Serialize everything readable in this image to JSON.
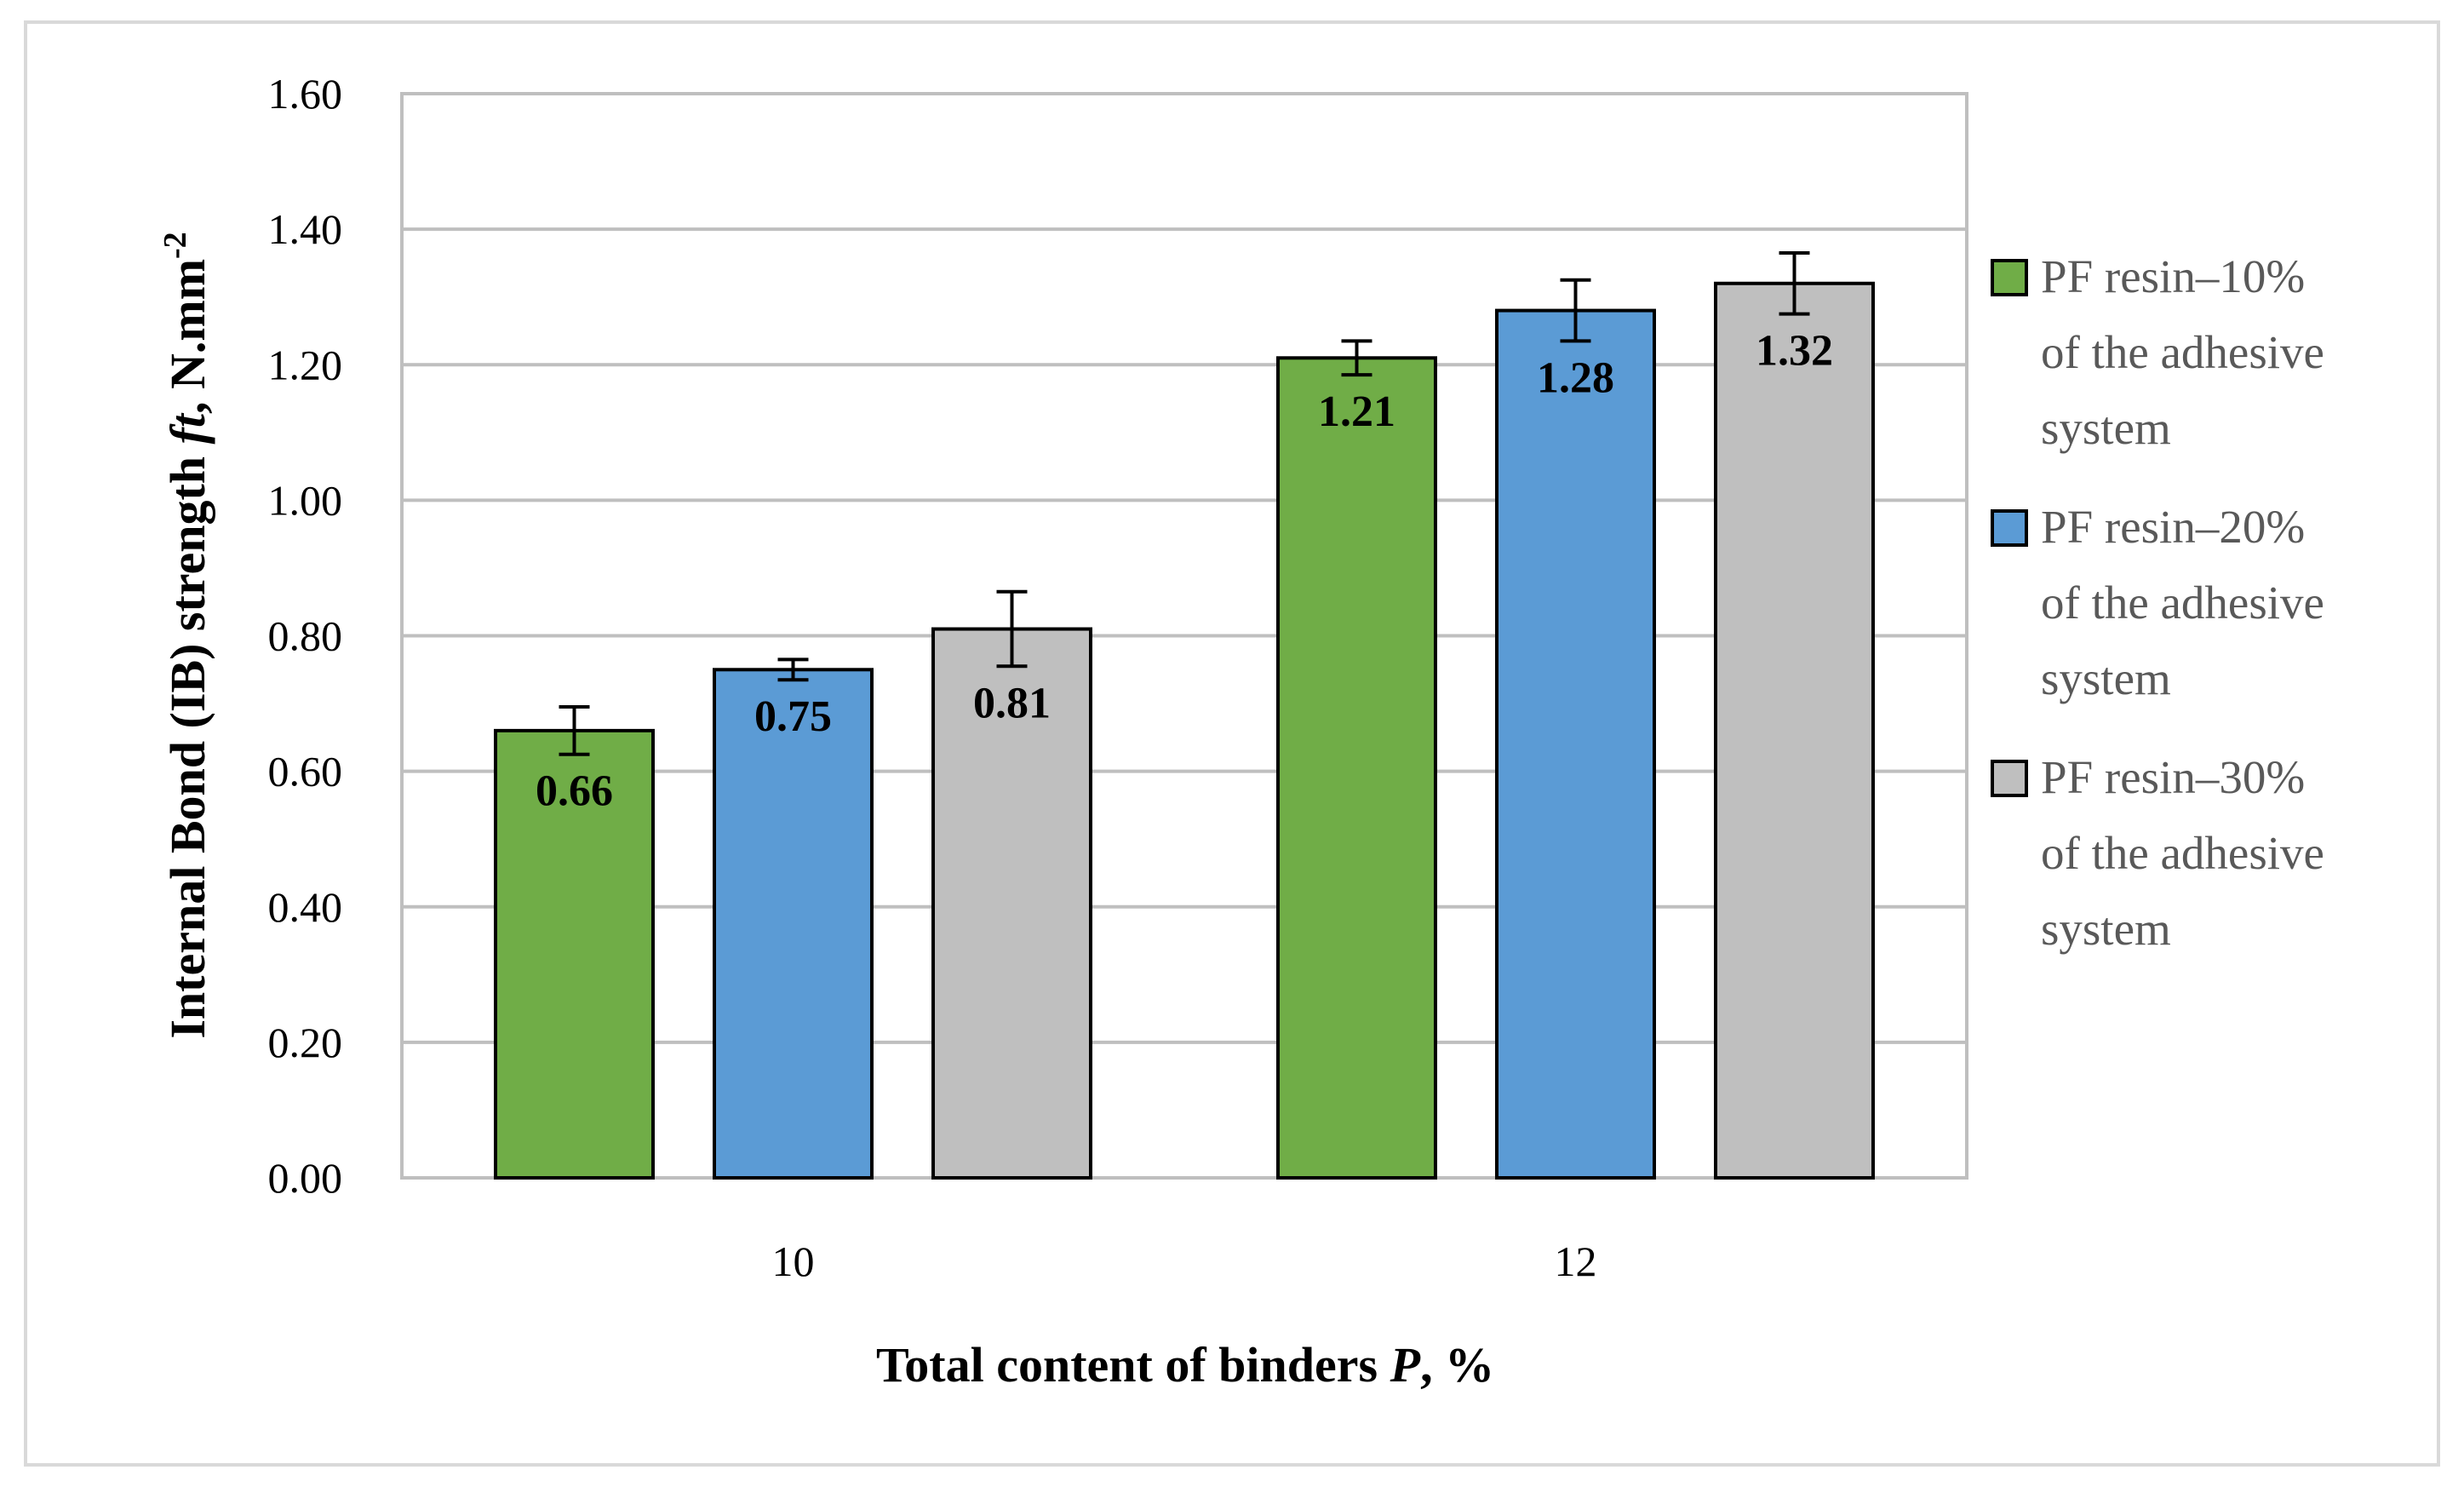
{
  "chart_data": {
    "type": "bar",
    "categories": [
      "10",
      "12"
    ],
    "series": [
      {
        "name": "PF resin–10% of the adhesive system",
        "values": [
          0.66,
          1.21
        ],
        "errors": [
          0.035,
          0.025
        ],
        "labels": [
          "0.66",
          "1.21"
        ],
        "color": "#70ad47"
      },
      {
        "name": "PF resin–20% of the adhesive system",
        "values": [
          0.75,
          1.28
        ],
        "errors": [
          0.015,
          0.045
        ],
        "labels": [
          "0.75",
          "1.28"
        ],
        "color": "#5b9bd5"
      },
      {
        "name": "PF resin–30% of the adhesive system",
        "values": [
          0.81,
          1.32
        ],
        "errors": [
          0.055,
          0.045
        ],
        "labels": [
          "0.81",
          "1.32"
        ],
        "color": "#bfbfbf"
      }
    ],
    "y_ticks": [
      "0.00",
      "0.20",
      "0.40",
      "0.60",
      "0.80",
      "1.00",
      "1.20",
      "1.40",
      "1.60"
    ],
    "ylim": [
      0,
      1.6
    ],
    "xlabel_main": "Total content of binders ",
    "xlabel_italic": "P",
    "xlabel_suffix": ", %",
    "ylabel_main": "Internal Bond (IB) strength ",
    "ylabel_italic": "ft",
    "ylabel_suffix": ", N.mm",
    "ylabel_superscript": "-2",
    "legend_lines": [
      [
        "PF resin–10%",
        "of the adhesive",
        "system"
      ],
      [
        "PF resin–20%",
        "of the adhesive",
        "system"
      ],
      [
        "PF resin–30%",
        "of the adhesive",
        "system"
      ]
    ],
    "grid": true,
    "legend_position": "right"
  }
}
